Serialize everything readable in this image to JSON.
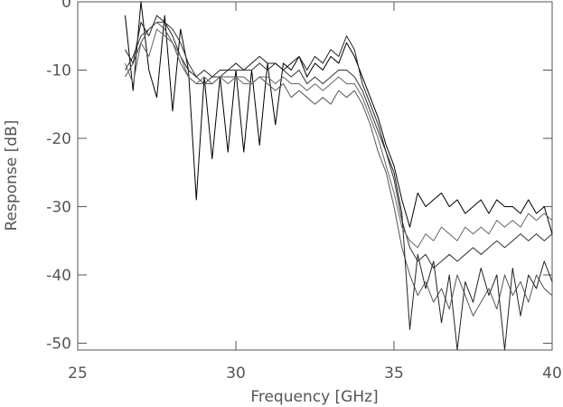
{
  "chart_data": {
    "type": "line",
    "xlabel": "Frequency [GHz]",
    "ylabel": "Response [dB]",
    "xlim": [
      25,
      40
    ],
    "xticks": [
      25,
      30,
      35,
      40
    ],
    "ylim": [
      -51,
      0
    ],
    "yticks": [
      0,
      -10,
      -20,
      -30,
      -40,
      -50
    ],
    "x": [
      26.5,
      26.75,
      27,
      27.25,
      27.5,
      27.75,
      28,
      28.25,
      28.5,
      28.75,
      29,
      29.25,
      29.5,
      29.75,
      30,
      30.25,
      30.5,
      30.75,
      31,
      31.25,
      31.5,
      31.75,
      32,
      32.25,
      32.5,
      32.75,
      33,
      33.25,
      33.5,
      33.75,
      34,
      34.25,
      34.5,
      34.75,
      35,
      35.25,
      35.5,
      35.75,
      36,
      36.25,
      36.5,
      36.75,
      37,
      37.25,
      37.5,
      37.75,
      38,
      38.25,
      38.5,
      38.75,
      39,
      39.25,
      39.5,
      39.75,
      40
    ],
    "series": [
      {
        "color": "#000000",
        "values": [
          -2,
          -13,
          0,
          -10,
          -14,
          -2,
          -16,
          -4,
          -10,
          -29,
          -11,
          -23,
          -11,
          -22,
          -10,
          -22,
          -10,
          -21,
          -9,
          -18,
          -9,
          -10,
          -8,
          -11,
          -9,
          -10,
          -8,
          -9,
          -6,
          -8,
          -11,
          -14,
          -17,
          -21,
          -24,
          -29,
          -33,
          -28,
          -30,
          -29,
          -28,
          -30,
          -29,
          -31,
          -30,
          -29,
          -31,
          -29,
          -30,
          -30,
          -31,
          -29,
          -31,
          -30,
          -34
        ]
      },
      {
        "color": "#333333",
        "values": [
          -10,
          -8,
          -5,
          -4,
          -3,
          -3,
          -4,
          -6,
          -9,
          -11,
          -12,
          -11,
          -11,
          -10,
          -10,
          -10,
          -10,
          -9,
          -10,
          -9,
          -10,
          -11,
          -10,
          -12,
          -11,
          -12,
          -11,
          -10,
          -10,
          -11,
          -13,
          -16,
          -19,
          -22,
          -26,
          -32,
          -36,
          -38,
          -37,
          -39,
          -38,
          -37,
          -38,
          -37,
          -36,
          -37,
          -36,
          -35,
          -36,
          -35,
          -34,
          -35,
          -34,
          -35,
          -34
        ]
      },
      {
        "color": "#555555",
        "values": [
          -11,
          -9,
          -6,
          -4,
          -3,
          -4,
          -6,
          -9,
          -11,
          -12,
          -12,
          -12,
          -11,
          -11,
          -11,
          -11,
          -12,
          -11,
          -12,
          -13,
          -12,
          -14,
          -13,
          -14,
          -15,
          -14,
          -15,
          -13,
          -14,
          -13,
          -15,
          -18,
          -22,
          -25,
          -30,
          -36,
          -40,
          -43,
          -41,
          -44,
          -42,
          -45,
          -40,
          -43,
          -46,
          -44,
          -42,
          -45,
          -40,
          -43,
          -41,
          -44,
          -40,
          -42,
          -43
        ]
      },
      {
        "color": "#222222",
        "values": [
          -7,
          -9,
          -3,
          -5,
          -2,
          -3,
          -5,
          -8,
          -10,
          -11,
          -10,
          -11,
          -10,
          -10,
          -9,
          -10,
          -9,
          -8,
          -9,
          -9,
          -10,
          -9,
          -8,
          -10,
          -8,
          -9,
          -7,
          -8,
          -5,
          -7,
          -12,
          -15,
          -18,
          -22,
          -25,
          -31,
          -48,
          -37,
          -42,
          -38,
          -47,
          -40,
          -51,
          -41,
          -44,
          -39,
          -43,
          -40,
          -51,
          -39,
          -46,
          -40,
          -42,
          -38,
          -41
        ]
      },
      {
        "color": "#666666",
        "values": [
          -9,
          -12,
          -6,
          -8,
          -4,
          -5,
          -6,
          -8,
          -11,
          -12,
          -11,
          -12,
          -11,
          -12,
          -11,
          -12,
          -12,
          -11,
          -11,
          -12,
          -11,
          -12,
          -12,
          -13,
          -12,
          -13,
          -12,
          -11,
          -12,
          -12,
          -14,
          -17,
          -20,
          -24,
          -28,
          -33,
          -35,
          -36,
          -34,
          -35,
          -33,
          -34,
          -35,
          -33,
          -34,
          -33,
          -34,
          -32,
          -33,
          -32,
          -33,
          -31,
          -32,
          -31,
          -32
        ]
      }
    ]
  }
}
